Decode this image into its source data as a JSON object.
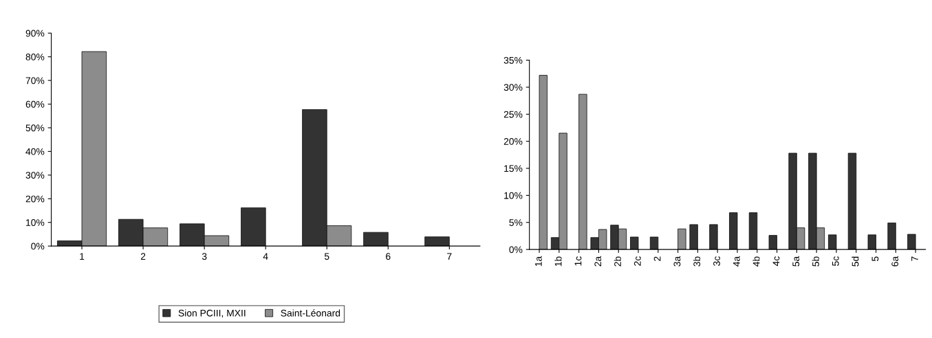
{
  "chart_data": [
    {
      "type": "bar",
      "categories": [
        "1",
        "2",
        "3",
        "4",
        "5",
        "6",
        "7"
      ],
      "series": [
        {
          "name": "Sion PCIII, MXII",
          "color": "#333333",
          "values": [
            2.2,
            11.3,
            9.4,
            16.2,
            57.7,
            5.8,
            3.9
          ]
        },
        {
          "name": "Saint-Léonard",
          "color": "#8c8c8c",
          "values": [
            82.2,
            7.7,
            4.4,
            null,
            8.6,
            null,
            null
          ]
        }
      ],
      "ylim": [
        0,
        90
      ],
      "yticks": [
        {
          "value": 0,
          "label": "0%"
        },
        {
          "value": 10,
          "label": "10%"
        },
        {
          "value": 20,
          "label": "20%"
        },
        {
          "value": 30,
          "label": "30%"
        },
        {
          "value": 40,
          "label": "40%"
        },
        {
          "value": 50,
          "label": "50%"
        },
        {
          "value": 60,
          "label": "60%"
        },
        {
          "value": 70,
          "label": "70%"
        },
        {
          "value": 80,
          "label": "80%"
        },
        {
          "value": 90,
          "label": "90%"
        }
      ],
      "grid": false,
      "legend": "bottom"
    },
    {
      "type": "bar",
      "categories": [
        "1a",
        "1b",
        "1c",
        "2a",
        "2b",
        "2c",
        "2",
        "3a",
        "3b",
        "3c",
        "4a",
        "4b",
        "4c",
        "5a",
        "5b",
        "5c",
        "5d",
        "5",
        "6a",
        "7"
      ],
      "series": [
        {
          "color": "#333333",
          "values": [
            null,
            2.2,
            null,
            2.2,
            4.5,
            2.3,
            2.3,
            null,
            4.6,
            4.6,
            6.8,
            6.8,
            2.6,
            17.8,
            17.8,
            2.7,
            17.8,
            2.7,
            4.9,
            2.8
          ]
        },
        {
          "color": "#8c8c8c",
          "values": [
            32.2,
            21.5,
            28.7,
            3.7,
            3.8,
            null,
            null,
            3.8,
            null,
            null,
            null,
            null,
            null,
            4.0,
            4.0,
            null,
            null,
            null,
            null,
            null
          ]
        }
      ],
      "ylim": [
        0,
        35
      ],
      "yticks": [
        {
          "value": 0,
          "label": "0%"
        },
        {
          "value": 5,
          "label": "5%"
        },
        {
          "value": 10,
          "label": "10%"
        },
        {
          "value": 15,
          "label": "15%"
        },
        {
          "value": 20,
          "label": "20%"
        },
        {
          "value": 25,
          "label": "25%"
        },
        {
          "value": 30,
          "label": "30%"
        },
        {
          "value": 35,
          "label": "35%"
        }
      ],
      "grid": false,
      "legend": false
    }
  ]
}
